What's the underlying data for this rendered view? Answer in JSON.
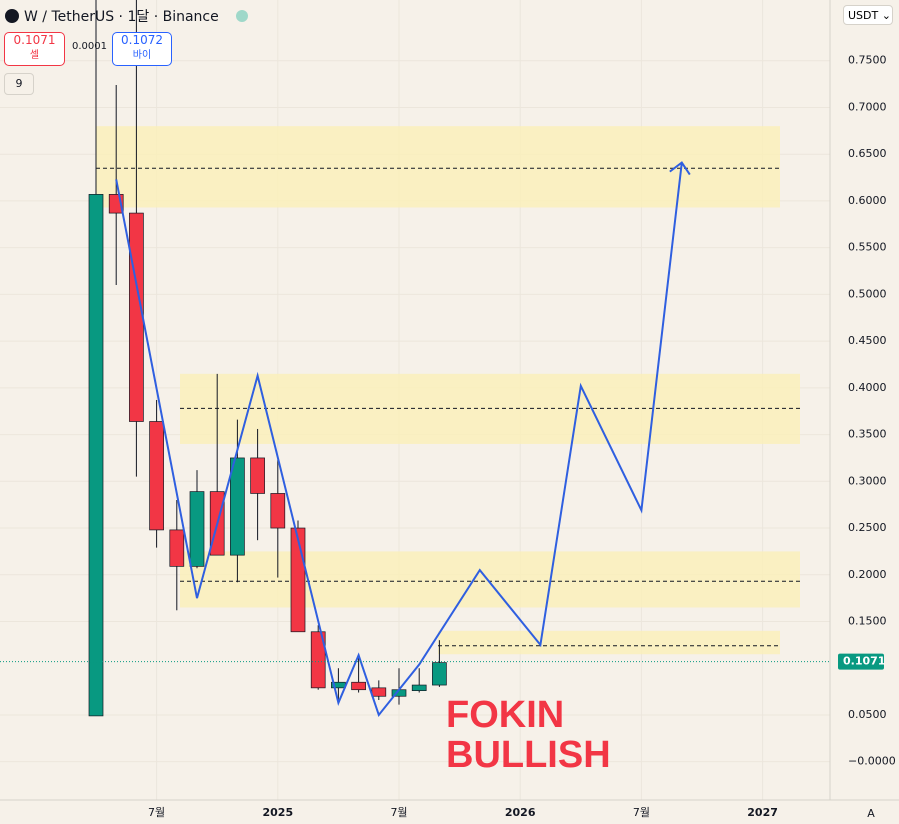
{
  "header": {
    "title": "W / TetherUS · 1달 · Binance",
    "sell_price": 0.1071,
    "sell_label": "셀",
    "spread": 0.0001,
    "buy_price": 0.1072,
    "buy_label": "바이",
    "indicator_count": 9,
    "currency": "USDT ⌄",
    "scale_mode": "A"
  },
  "chart_data": {
    "type": "candlestick",
    "categories": [
      null,
      null,
      null,
      "7월",
      null,
      null,
      null,
      null,
      null,
      "2025",
      null,
      null,
      null,
      null,
      null,
      "7월",
      null,
      null,
      null,
      null,
      null,
      "2026",
      null,
      null,
      null,
      null,
      null,
      "7월",
      null,
      null,
      null,
      null,
      null,
      "2027",
      null,
      null,
      null,
      null,
      null
    ],
    "open": [
      0.049,
      0.607,
      0.587,
      0.364,
      0.248,
      0.209,
      0.289,
      0.221,
      0.325,
      0.287,
      0.25,
      0.139,
      0.079,
      0.085,
      0.079,
      0.07,
      0.076,
      0.082,
      null,
      null,
      null,
      null,
      null,
      null,
      null,
      null,
      null,
      null,
      null,
      null,
      null,
      null,
      null,
      null,
      null,
      null,
      null,
      null,
      null
    ],
    "high": [
      0.82,
      0.724,
      0.82,
      0.387,
      0.28,
      0.312,
      0.415,
      0.366,
      0.356,
      0.323,
      0.258,
      0.146,
      0.1,
      0.114,
      0.087,
      0.1,
      0.1,
      0.13,
      null,
      null,
      null,
      null,
      null,
      null,
      null,
      null,
      null,
      null,
      null,
      null,
      null,
      null,
      null,
      null,
      null,
      null,
      null,
      null,
      null
    ],
    "low": [
      0.049,
      0.51,
      0.305,
      0.229,
      0.162,
      0.207,
      0.221,
      0.192,
      0.237,
      0.197,
      0.139,
      0.077,
      0.066,
      0.074,
      0.066,
      0.061,
      0.074,
      0.08,
      null,
      null,
      null,
      null,
      null,
      null,
      null,
      null,
      null,
      null,
      null,
      null,
      null,
      null,
      null,
      null,
      null,
      null,
      null,
      null,
      null
    ],
    "close": [
      0.607,
      0.587,
      0.364,
      0.248,
      0.209,
      0.289,
      0.221,
      0.325,
      0.287,
      0.25,
      0.139,
      0.079,
      0.085,
      0.077,
      0.07,
      0.077,
      0.082,
      0.106,
      null,
      null,
      null,
      null,
      null,
      null,
      null,
      null,
      null,
      null,
      null,
      null,
      null,
      null,
      null,
      null,
      null,
      null,
      null,
      null,
      null
    ],
    "up_color": "#089981",
    "down_color": "#f23645",
    "projection": {
      "color": "#2f5fe0",
      "values": [
        null,
        0.623,
        null,
        null,
        null,
        0.175,
        null,
        null,
        0.413,
        null,
        null,
        null,
        0.063,
        0.114,
        0.05,
        null,
        0.104,
        null,
        null,
        0.205,
        null,
        null,
        0.125,
        null,
        0.402,
        null,
        null,
        0.269,
        null,
        0.641,
        null,
        null,
        null,
        null,
        null,
        null,
        null,
        null,
        null
      ]
    },
    "zones": [
      {
        "low": 0.593,
        "high": 0.68
      },
      {
        "low": 0.34,
        "high": 0.415
      },
      {
        "low": 0.165,
        "high": 0.225
      },
      {
        "low": 0.115,
        "high": 0.14
      }
    ],
    "zone_color": "#fbf0b8",
    "levels": [
      0.635,
      0.378,
      0.193,
      0.124
    ],
    "last_price": 0.1071,
    "annotation": [
      "FOKIN",
      "BULLISH"
    ],
    "ylim": [
      -0.041,
      0.815
    ],
    "yticks": [
      {
        "value": 0.75,
        "label": "0.7500"
      },
      {
        "value": 0.7,
        "label": "0.7000"
      },
      {
        "value": 0.65,
        "label": "0.6500"
      },
      {
        "value": 0.6,
        "label": "0.6000"
      },
      {
        "value": 0.55,
        "label": "0.5500"
      },
      {
        "value": 0.5,
        "label": "0.5000"
      },
      {
        "value": 0.45,
        "label": "0.4500"
      },
      {
        "value": 0.4,
        "label": "0.4000"
      },
      {
        "value": 0.35,
        "label": "0.3500"
      },
      {
        "value": 0.3,
        "label": "0.3000"
      },
      {
        "value": 0.25,
        "label": "0.2500"
      },
      {
        "value": 0.2,
        "label": "0.2000"
      },
      {
        "value": 0.15,
        "label": "0.1500"
      },
      {
        "value": 0.05,
        "label": "0.0500"
      },
      {
        "value": 0,
        "label": "−0.0000"
      }
    ],
    "grid": true
  }
}
